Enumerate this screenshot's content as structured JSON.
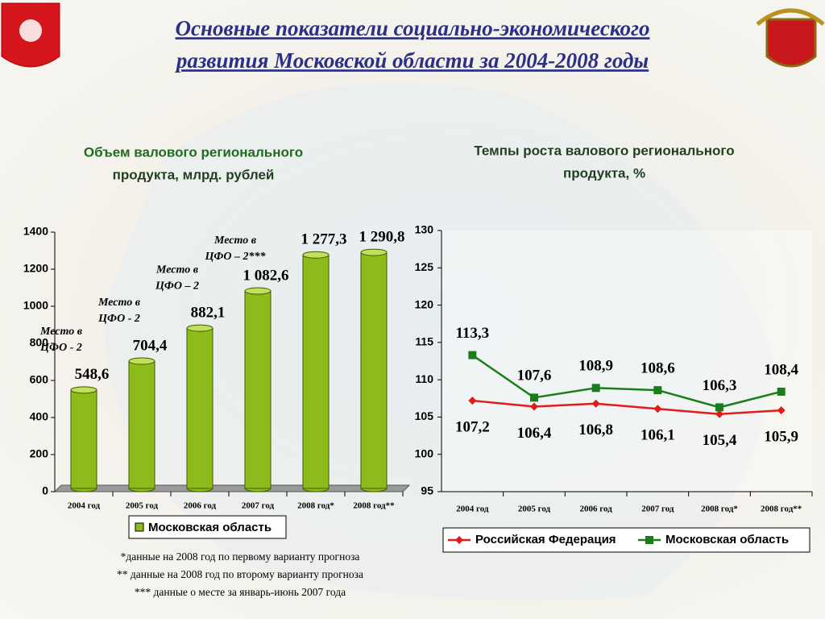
{
  "title_lines": [
    "Основные показатели социально-экономического",
    "развития Московской области за 2004-2008 годы"
  ],
  "chart_data": [
    {
      "type": "bar",
      "title_lines": [
        "Объем валового регионального",
        "продукта, млрд. рублей"
      ],
      "categories": [
        "2004 год",
        "2005 год",
        "2006 год",
        "2007 год",
        "2008 год*",
        "2008 год**"
      ],
      "series": [
        {
          "name": "Московская область",
          "color": "#8dbb1c",
          "values": [
            548.6,
            704.4,
            882.1,
            1082.6,
            1277.3,
            1290.8
          ],
          "value_labels": [
            "548,6",
            "704,4",
            "882,1",
            "1 082,6",
            "1 277,3",
            "1 290,8"
          ]
        }
      ],
      "annotations": [
        [
          "Место в",
          "ЦФО - 2"
        ],
        [
          "Место в",
          "ЦФО - 2"
        ],
        [
          "Место в",
          "ЦФО – 2"
        ],
        [
          "Место в",
          "ЦФО – 2***"
        ],
        null,
        null
      ],
      "ylim": [
        0,
        1400
      ],
      "yticks": [
        0,
        200,
        400,
        600,
        800,
        1000,
        1200,
        1400
      ]
    },
    {
      "type": "line",
      "title_lines": [
        "Темпы роста валового регионального",
        "продукта, %"
      ],
      "categories": [
        "2004 год",
        "2005 год",
        "2006 год",
        "2007 год",
        "2008 год*",
        "2008 год**"
      ],
      "series": [
        {
          "name": "Российская Федерация",
          "color": "#e31b1b",
          "values": [
            107.2,
            106.4,
            106.8,
            106.1,
            105.4,
            105.9
          ],
          "value_labels": [
            "107,2",
            "106,4",
            "106,8",
            "106,1",
            "105,4",
            "105,9"
          ]
        },
        {
          "name": "Московская область",
          "color": "#1a7d1a",
          "values": [
            113.3,
            107.6,
            108.9,
            108.6,
            106.3,
            108.4
          ],
          "value_labels": [
            "113,3",
            "107,6",
            "108,9",
            "108,6",
            "106,3",
            "108,4"
          ]
        }
      ],
      "ylim": [
        95,
        130
      ],
      "yticks": [
        95,
        100,
        105,
        110,
        115,
        120,
        125,
        130
      ]
    }
  ],
  "footnotes": [
    "*данные на 2008 год по первому варианту прогноза",
    "** данные на 2008 год по второму варианту прогноза",
    "*** данные о месте за январь-июнь 2007 года"
  ]
}
